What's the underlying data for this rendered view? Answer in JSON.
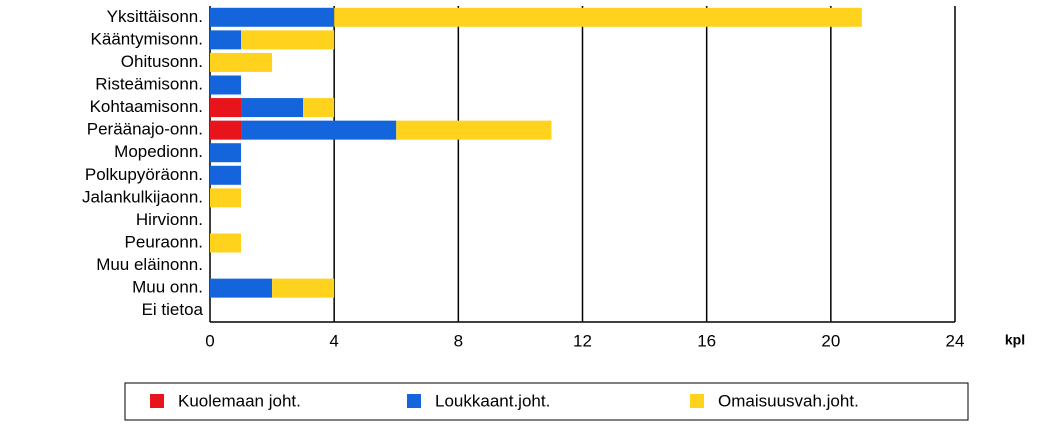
{
  "chart_data": {
    "type": "bar",
    "orientation": "horizontal",
    "stacked": true,
    "x_label": "kpl",
    "categories": [
      "Yksittäisonn.",
      "Kääntymisonn.",
      "Ohitusonn.",
      "Risteämisonn.",
      "Kohtaamisonn.",
      "Peräänajo-onn.",
      "Mopedionn.",
      "Polkupyöräonn.",
      "Jalankulkijaonn.",
      "Hirvionn.",
      "Peuraonn.",
      "Muu eläinonn.",
      "Muu onn.",
      "Ei tietoa"
    ],
    "series": [
      {
        "name": "Kuolemaan joht.",
        "color": "#e8141c",
        "values": [
          0,
          0,
          0,
          0,
          1,
          1,
          0,
          0,
          0,
          0,
          0,
          0,
          0,
          0
        ]
      },
      {
        "name": "Loukkaant.joht.",
        "color": "#1464dc",
        "values": [
          4,
          1,
          0,
          1,
          2,
          5,
          1,
          1,
          0,
          0,
          0,
          0,
          2,
          0
        ]
      },
      {
        "name": "Omaisuusvah.joht.",
        "color": "#ffd21e",
        "values": [
          17,
          3,
          2,
          0,
          1,
          5,
          0,
          0,
          1,
          0,
          1,
          0,
          2,
          0
        ]
      }
    ],
    "xlim": [
      0,
      24
    ],
    "xticks": [
      0,
      4,
      8,
      12,
      16,
      20,
      24
    ],
    "grid": true,
    "legend": "bottom"
  }
}
